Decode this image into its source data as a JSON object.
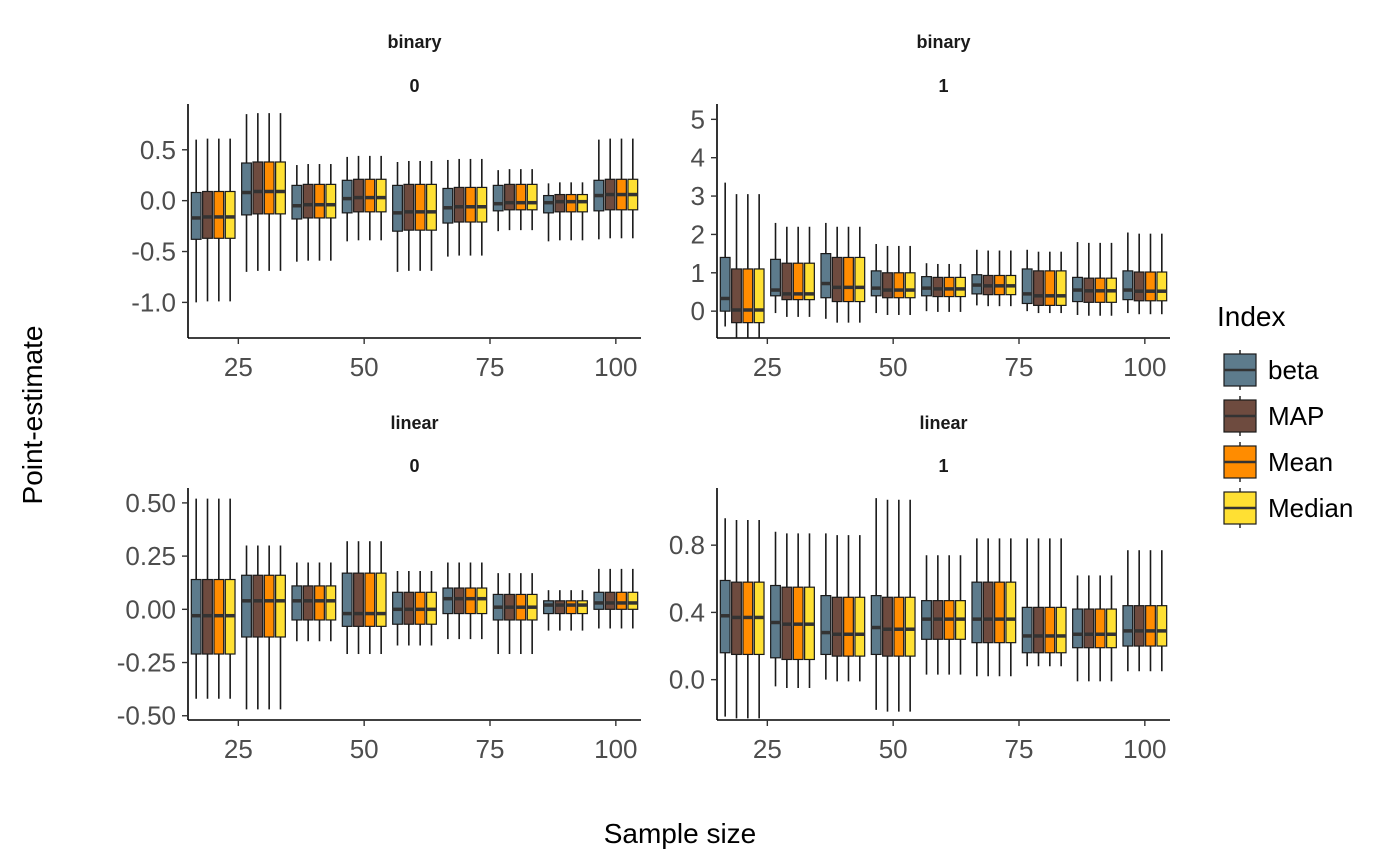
{
  "chart_data": {
    "type": "boxplot",
    "xlabel": "Sample size",
    "ylabel": "Point-estimate",
    "legend": {
      "title": "Index",
      "placement": "right",
      "entries": [
        "beta",
        "MAP",
        "Mean",
        "Median"
      ]
    },
    "colors": {
      "beta": "#5D7B8C",
      "MAP": "#6E4B3F",
      "Mean": "#FF8C00",
      "Median": "#FFE033",
      "outline": "#1a1a1a"
    },
    "series_names": [
      "beta",
      "MAP",
      "Mean",
      "Median"
    ],
    "x": [
      20,
      30,
      40,
      50,
      60,
      70,
      80,
      90,
      100
    ],
    "panels": [
      {
        "strip": [
          "binary",
          "0"
        ],
        "xlim": [
          15,
          105
        ],
        "xticks": [
          25,
          50,
          75,
          100
        ],
        "ylim": [
          -1.35,
          0.95
        ],
        "yticks": [
          -1.0,
          -0.5,
          0.0,
          0.5
        ],
        "ytick_labels": [
          "-1.0",
          "-0.5",
          "0.0",
          "0.5"
        ],
        "groups": [
          {
            "whisker": [
              -1.0,
              0.6
            ],
            "q1": -0.38,
            "median": -0.17,
            "q3": 0.08,
            "var": [
              0,
              0.01,
              0.01,
              0.01
            ]
          },
          {
            "whisker": [
              -0.7,
              0.85
            ],
            "q1": -0.14,
            "median": 0.08,
            "q3": 0.37,
            "var": [
              0,
              0.01,
              0.01,
              0.01
            ]
          },
          {
            "whisker": [
              -0.6,
              0.35
            ],
            "q1": -0.18,
            "median": -0.05,
            "q3": 0.15,
            "var": [
              0,
              0.01,
              0.01,
              0.01
            ]
          },
          {
            "whisker": [
              -0.4,
              0.43
            ],
            "q1": -0.12,
            "median": 0.02,
            "q3": 0.2,
            "var": [
              0,
              0.01,
              0.01,
              0.01
            ]
          },
          {
            "whisker": [
              -0.7,
              0.38
            ],
            "q1": -0.3,
            "median": -0.12,
            "q3": 0.15,
            "var": [
              0,
              0.01,
              0.01,
              0.01
            ]
          },
          {
            "whisker": [
              -0.55,
              0.4
            ],
            "q1": -0.22,
            "median": -0.07,
            "q3": 0.12,
            "var": [
              0,
              0.01,
              0.01,
              0.01
            ]
          },
          {
            "whisker": [
              -0.3,
              0.3
            ],
            "q1": -0.1,
            "median": -0.03,
            "q3": 0.15,
            "var": [
              0,
              0.01,
              0.01,
              0.01
            ]
          },
          {
            "whisker": [
              -0.4,
              0.17
            ],
            "q1": -0.12,
            "median": -0.02,
            "q3": 0.05,
            "var": [
              0,
              0.01,
              0.01,
              0.01
            ]
          },
          {
            "whisker": [
              -0.38,
              0.6
            ],
            "q1": -0.1,
            "median": 0.05,
            "q3": 0.2,
            "var": [
              0,
              0.01,
              0.01,
              0.01
            ]
          }
        ]
      },
      {
        "strip": [
          "binary",
          "1"
        ],
        "xlim": [
          15,
          105
        ],
        "xticks": [
          25,
          50,
          75,
          100
        ],
        "ylim": [
          -0.7,
          5.4
        ],
        "yticks": [
          0,
          1,
          2,
          3,
          4,
          5
        ],
        "ytick_labels": [
          "0",
          "1",
          "2",
          "3",
          "4",
          "5"
        ],
        "groups": [
          {
            "whisker": [
              -0.4,
              3.35
            ],
            "q1": 0.0,
            "median": 0.33,
            "q3": 1.4,
            "var": [
              0,
              -0.3,
              -0.3,
              -0.3
            ]
          },
          {
            "whisker": [
              -0.05,
              2.3
            ],
            "q1": 0.4,
            "median": 0.55,
            "q3": 1.35,
            "var": [
              0,
              -0.1,
              -0.1,
              -0.1
            ]
          },
          {
            "whisker": [
              -0.2,
              2.3
            ],
            "q1": 0.35,
            "median": 0.72,
            "q3": 1.5,
            "var": [
              0,
              -0.1,
              -0.1,
              -0.1
            ]
          },
          {
            "whisker": [
              -0.05,
              1.75
            ],
            "q1": 0.4,
            "median": 0.6,
            "q3": 1.05,
            "var": [
              0,
              -0.05,
              -0.05,
              -0.05
            ]
          },
          {
            "whisker": [
              0.0,
              1.25
            ],
            "q1": 0.4,
            "median": 0.6,
            "q3": 0.9,
            "var": [
              0,
              -0.02,
              -0.02,
              -0.02
            ]
          },
          {
            "whisker": [
              0.15,
              1.6
            ],
            "q1": 0.45,
            "median": 0.68,
            "q3": 0.95,
            "var": [
              0,
              -0.02,
              -0.02,
              -0.02
            ]
          },
          {
            "whisker": [
              0.0,
              1.6
            ],
            "q1": 0.2,
            "median": 0.45,
            "q3": 1.1,
            "var": [
              0,
              -0.05,
              -0.05,
              -0.05
            ]
          },
          {
            "whisker": [
              -0.1,
              1.8
            ],
            "q1": 0.25,
            "median": 0.55,
            "q3": 0.88,
            "var": [
              0,
              -0.02,
              -0.02,
              -0.02
            ]
          },
          {
            "whisker": [
              -0.05,
              2.05
            ],
            "q1": 0.3,
            "median": 0.55,
            "q3": 1.05,
            "var": [
              0,
              -0.03,
              -0.03,
              -0.03
            ]
          }
        ]
      },
      {
        "strip": [
          "linear",
          "0"
        ],
        "xlim": [
          15,
          105
        ],
        "xticks": [
          25,
          50,
          75,
          100
        ],
        "ylim": [
          -0.52,
          0.57
        ],
        "yticks": [
          -0.5,
          -0.25,
          0.0,
          0.25,
          0.5
        ],
        "ytick_labels": [
          "-0.50",
          "-0.25",
          "0.00",
          "0.25",
          "0.50"
        ],
        "groups": [
          {
            "whisker": [
              -0.42,
              0.52
            ],
            "q1": -0.21,
            "median": -0.03,
            "q3": 0.14,
            "var": [
              0,
              0.0,
              0.0,
              0.0
            ]
          },
          {
            "whisker": [
              -0.47,
              0.3
            ],
            "q1": -0.13,
            "median": 0.04,
            "q3": 0.16,
            "var": [
              0,
              0.0,
              0.0,
              0.0
            ]
          },
          {
            "whisker": [
              -0.15,
              0.22
            ],
            "q1": -0.05,
            "median": 0.04,
            "q3": 0.11,
            "var": [
              0,
              0.0,
              0.0,
              0.0
            ]
          },
          {
            "whisker": [
              -0.21,
              0.32
            ],
            "q1": -0.08,
            "median": -0.02,
            "q3": 0.17,
            "var": [
              0,
              0.0,
              0.0,
              0.0
            ]
          },
          {
            "whisker": [
              -0.17,
              0.18
            ],
            "q1": -0.07,
            "median": 0.0,
            "q3": 0.08,
            "var": [
              0,
              0.0,
              0.0,
              0.0
            ]
          },
          {
            "whisker": [
              -0.14,
              0.22
            ],
            "q1": -0.02,
            "median": 0.05,
            "q3": 0.1,
            "var": [
              0,
              0.0,
              0.0,
              0.0
            ]
          },
          {
            "whisker": [
              -0.21,
              0.17
            ],
            "q1": -0.05,
            "median": 0.01,
            "q3": 0.07,
            "var": [
              0,
              0.0,
              0.0,
              0.0
            ]
          },
          {
            "whisker": [
              -0.1,
              0.09
            ],
            "q1": -0.02,
            "median": 0.02,
            "q3": 0.04,
            "var": [
              0,
              0.0,
              0.0,
              0.0
            ]
          },
          {
            "whisker": [
              -0.09,
              0.19
            ],
            "q1": 0.0,
            "median": 0.03,
            "q3": 0.08,
            "var": [
              0,
              0.0,
              0.0,
              0.0
            ]
          }
        ]
      },
      {
        "strip": [
          "linear",
          "1"
        ],
        "xlim": [
          15,
          105
        ],
        "xticks": [
          25,
          50,
          75,
          100
        ],
        "ylim": [
          -0.24,
          1.14
        ],
        "yticks": [
          0.0,
          0.4,
          0.8
        ],
        "ytick_labels": [
          "0.0",
          "0.4",
          "0.8"
        ],
        "groups": [
          {
            "whisker": [
              -0.22,
              0.96
            ],
            "q1": 0.16,
            "median": 0.38,
            "q3": 0.59,
            "var": [
              0,
              -0.01,
              -0.01,
              -0.01
            ]
          },
          {
            "whisker": [
              -0.04,
              0.88
            ],
            "q1": 0.13,
            "median": 0.34,
            "q3": 0.56,
            "var": [
              0,
              -0.01,
              -0.01,
              -0.01
            ]
          },
          {
            "whisker": [
              0.0,
              0.87
            ],
            "q1": 0.15,
            "median": 0.28,
            "q3": 0.5,
            "var": [
              0,
              -0.01,
              -0.01,
              -0.01
            ]
          },
          {
            "whisker": [
              -0.18,
              1.08
            ],
            "q1": 0.15,
            "median": 0.31,
            "q3": 0.5,
            "var": [
              0,
              -0.01,
              -0.01,
              -0.01
            ]
          },
          {
            "whisker": [
              0.03,
              0.74
            ],
            "q1": 0.24,
            "median": 0.36,
            "q3": 0.47,
            "var": [
              0,
              0.0,
              0.0,
              0.0
            ]
          },
          {
            "whisker": [
              0.02,
              0.84
            ],
            "q1": 0.22,
            "median": 0.36,
            "q3": 0.58,
            "var": [
              0,
              0.0,
              0.0,
              0.0
            ]
          },
          {
            "whisker": [
              0.08,
              0.84
            ],
            "q1": 0.16,
            "median": 0.26,
            "q3": 0.43,
            "var": [
              0,
              0.0,
              0.0,
              0.0
            ]
          },
          {
            "whisker": [
              -0.01,
              0.62
            ],
            "q1": 0.19,
            "median": 0.27,
            "q3": 0.42,
            "var": [
              0,
              0.0,
              0.0,
              0.0
            ]
          },
          {
            "whisker": [
              0.05,
              0.77
            ],
            "q1": 0.2,
            "median": 0.29,
            "q3": 0.44,
            "var": [
              0,
              0.0,
              0.0,
              0.0
            ]
          }
        ]
      }
    ]
  }
}
